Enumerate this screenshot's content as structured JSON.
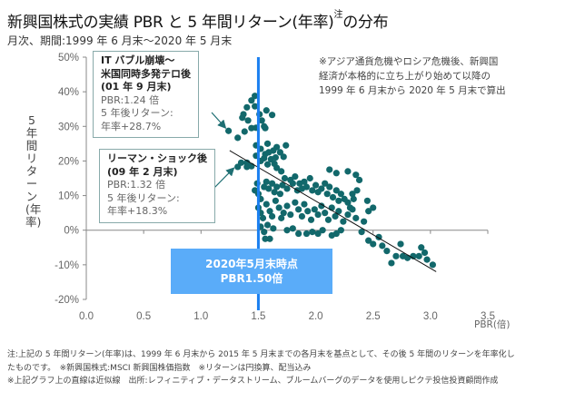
{
  "header": {
    "title": "新興国株式の実績 PBR と 5 年間リターン(年率)",
    "title_sup": "注",
    "title_suffix": "の分布",
    "subtitle": "月次、期間:1999 年 6 月末～2020 年 5 月末"
  },
  "top_note": [
    "※アジア通貨危機やロシア危機後、新興国",
    "経済が本格的に立ち上がり始めて以降の",
    "1999 年 6 月末から 2020 年 5 月末で算出"
  ],
  "annotations": {
    "it_bubble": {
      "title1": "IT バブル崩壊～",
      "title2": "米国同時多発テロ後",
      "title3": "(01 年 9 月末)",
      "pbr": "PBR:1.24 倍",
      "ret_label": "5 年後リターン:",
      "ret_value": "年率+28.7%"
    },
    "lehman": {
      "title1": "リーマン・ショック後",
      "title2": "(09 年 2 月末)",
      "pbr": "PBR:1.32 倍",
      "ret_label": "5 年後リターン:",
      "ret_value": "年率+18.3%"
    },
    "current": {
      "line1": "2020年5月末時点",
      "line2": "PBR1.50倍"
    }
  },
  "footnotes": [
    "注:上記の 5 年間リターン(年率)は、1999 年 6 月末から 2015 年 5 月末までの各月末を基点として、その後 5 年間のリターンを年率化し",
    "たものです。　※新興国株式:MSCI 新興国株価指数　※リターンは円換算、配当込み",
    "※上記グラフ上の直線は近似線　出所:レフィニティブ・データストリーム、ブルームバーグのデータを使用しピクテ投信投資顧問作成"
  ],
  "colors": {
    "points": "#12686b",
    "current_line": "#1a7ff0",
    "callout_bg": "#5aacf9",
    "trend": "#111111",
    "axis": "#888888"
  },
  "chart_data": {
    "type": "scatter",
    "title": "新興国株式の実績 PBR と 5 年間リターン(年率)の分布",
    "xlabel": "PBR(倍)",
    "ylabel": "5年間リターン(年率)",
    "xlim": [
      0.0,
      3.5
    ],
    "ylim": [
      -20,
      50
    ],
    "x_ticks": [
      "0.0",
      "0.5",
      "1.0",
      "1.5",
      "2.0",
      "2.5",
      "3.0",
      "3.5"
    ],
    "y_ticks": [
      "50%",
      "40%",
      "30%",
      "20%",
      "10%",
      "0%",
      "-10%",
      "-20%"
    ],
    "y_tick_values": [
      50,
      40,
      30,
      20,
      10,
      0,
      -10,
      -20
    ],
    "x_tick_values": [
      0.0,
      0.5,
      1.0,
      1.5,
      2.0,
      2.5,
      3.0,
      3.5
    ],
    "reference_line_x": 1.5,
    "trend_line": {
      "x": [
        1.25,
        3.05
      ],
      "y": [
        23,
        -12
      ]
    },
    "highlighted": [
      {
        "label": "2001-09",
        "x": 1.24,
        "y": 28.7
      },
      {
        "label": "2009-02",
        "x": 1.32,
        "y": 18.3
      }
    ],
    "points": [
      [
        1.24,
        28.7
      ],
      [
        1.32,
        26.7
      ],
      [
        1.38,
        28.5
      ],
      [
        1.36,
        32.5
      ],
      [
        1.37,
        33.5
      ],
      [
        1.41,
        31.7
      ],
      [
        1.44,
        29.5
      ],
      [
        1.4,
        35.5
      ],
      [
        1.44,
        37.5
      ],
      [
        1.47,
        38.8
      ],
      [
        1.47,
        35.8
      ],
      [
        1.51,
        33.5
      ],
      [
        1.53,
        31.7
      ],
      [
        1.55,
        30.0
      ],
      [
        1.57,
        34.6
      ],
      [
        1.56,
        29.5
      ],
      [
        1.62,
        33.3
      ],
      [
        1.48,
        29.6
      ],
      [
        1.48,
        24.5
      ],
      [
        1.52,
        23.5
      ],
      [
        1.58,
        25.0
      ],
      [
        1.66,
        24.0
      ],
      [
        1.63,
        23.0
      ],
      [
        1.69,
        22.5
      ],
      [
        1.74,
        24.5
      ],
      [
        1.56,
        22.0
      ],
      [
        1.59,
        22.5
      ],
      [
        1.65,
        21.0
      ],
      [
        1.72,
        21.2
      ],
      [
        1.32,
        18.3
      ],
      [
        1.35,
        19.5
      ],
      [
        1.4,
        19.5
      ],
      [
        1.4,
        18.3
      ],
      [
        1.44,
        18.5
      ],
      [
        1.48,
        21.5
      ],
      [
        1.52,
        20.0
      ],
      [
        1.55,
        20.8
      ],
      [
        1.58,
        19.0
      ],
      [
        1.61,
        20.5
      ],
      [
        1.64,
        19.2
      ],
      [
        1.66,
        18.0
      ],
      [
        1.7,
        17.0
      ],
      [
        1.49,
        13.5
      ],
      [
        1.47,
        11.5
      ],
      [
        1.5,
        10.5
      ],
      [
        1.52,
        9.0
      ],
      [
        1.55,
        12.5
      ],
      [
        1.57,
        14.0
      ],
      [
        1.59,
        12.0
      ],
      [
        1.62,
        13.5
      ],
      [
        1.64,
        11.0
      ],
      [
        1.66,
        12.5
      ],
      [
        1.69,
        10.5
      ],
      [
        1.71,
        13.0
      ],
      [
        1.73,
        15.0
      ],
      [
        1.75,
        12.0
      ],
      [
        1.78,
        14.5
      ],
      [
        1.8,
        13.5
      ],
      [
        1.82,
        15.5
      ],
      [
        1.84,
        11.5
      ],
      [
        1.86,
        13.5
      ],
      [
        1.88,
        12.0
      ],
      [
        1.9,
        14.0
      ],
      [
        1.92,
        12.5
      ],
      [
        1.95,
        15.0
      ],
      [
        1.97,
        11.5
      ],
      [
        2.0,
        13.0
      ],
      [
        2.02,
        11.0
      ],
      [
        2.05,
        12.0
      ],
      [
        2.08,
        13.5
      ],
      [
        2.1,
        10.5
      ],
      [
        2.12,
        12.5
      ],
      [
        2.15,
        9.5
      ],
      [
        2.18,
        11.5
      ],
      [
        2.2,
        8.5
      ],
      [
        2.22,
        10.5
      ],
      [
        2.25,
        9.0
      ],
      [
        2.28,
        8.0
      ],
      [
        2.3,
        6.5
      ],
      [
        2.33,
        9.0
      ],
      [
        1.5,
        6.5
      ],
      [
        1.52,
        5.0
      ],
      [
        1.54,
        3.5
      ],
      [
        1.57,
        7.5
      ],
      [
        1.6,
        5.5
      ],
      [
        1.62,
        4.0
      ],
      [
        1.65,
        8.5
      ],
      [
        1.68,
        6.5
      ],
      [
        1.7,
        3.5
      ],
      [
        1.72,
        5.0
      ],
      [
        1.75,
        7.0
      ],
      [
        1.78,
        4.5
      ],
      [
        1.82,
        8.0
      ],
      [
        1.85,
        6.0
      ],
      [
        1.88,
        4.0
      ],
      [
        1.9,
        7.5
      ],
      [
        1.93,
        5.5
      ],
      [
        1.96,
        3.0
      ],
      [
        1.99,
        6.0
      ],
      [
        2.02,
        4.5
      ],
      [
        2.05,
        7.0
      ],
      [
        2.08,
        5.0
      ],
      [
        2.11,
        3.0
      ],
      [
        2.14,
        6.5
      ],
      [
        2.17,
        4.0
      ],
      [
        2.2,
        5.5
      ],
      [
        2.24,
        2.5
      ],
      [
        2.28,
        4.5
      ],
      [
        2.32,
        6.0
      ],
      [
        2.35,
        3.5
      ],
      [
        1.52,
        1.0
      ],
      [
        1.55,
        -0.5
      ],
      [
        1.56,
        -2.5
      ],
      [
        1.6,
        -2.5
      ],
      [
        1.58,
        1.5
      ],
      [
        1.63,
        0.5
      ],
      [
        1.75,
        0.0
      ],
      [
        1.8,
        0.5
      ],
      [
        1.85,
        -1.0
      ],
      [
        1.92,
        -1.0
      ],
      [
        1.97,
        -0.5
      ],
      [
        2.02,
        -1.0
      ],
      [
        2.06,
        0.0
      ],
      [
        2.14,
        -1.5
      ],
      [
        2.18,
        -1.0
      ],
      [
        2.22,
        0.0
      ],
      [
        2.12,
        17.5
      ],
      [
        2.18,
        16.5
      ],
      [
        2.28,
        17.0
      ],
      [
        2.35,
        16.0
      ],
      [
        2.38,
        14.5
      ],
      [
        2.36,
        11.5
      ],
      [
        2.32,
        10.5
      ],
      [
        2.45,
        8.5
      ],
      [
        2.5,
        6.5
      ],
      [
        2.46,
        5.5
      ],
      [
        2.42,
        2.5
      ],
      [
        2.4,
        -0.5
      ],
      [
        2.46,
        -3.0
      ],
      [
        2.5,
        -4.0
      ],
      [
        2.55,
        -2.0
      ],
      [
        2.58,
        -4.5
      ],
      [
        2.62,
        -6.0
      ],
      [
        2.7,
        -7.5
      ],
      [
        2.76,
        -7.5
      ],
      [
        2.8,
        -8.0
      ],
      [
        2.85,
        -7.5
      ],
      [
        2.9,
        -7.5
      ],
      [
        2.92,
        -5.0
      ],
      [
        2.95,
        -6.5
      ],
      [
        3.02,
        -10.0
      ],
      [
        2.97,
        -8.5
      ],
      [
        2.66,
        -9.5
      ],
      [
        2.74,
        -4.0
      ]
    ]
  }
}
